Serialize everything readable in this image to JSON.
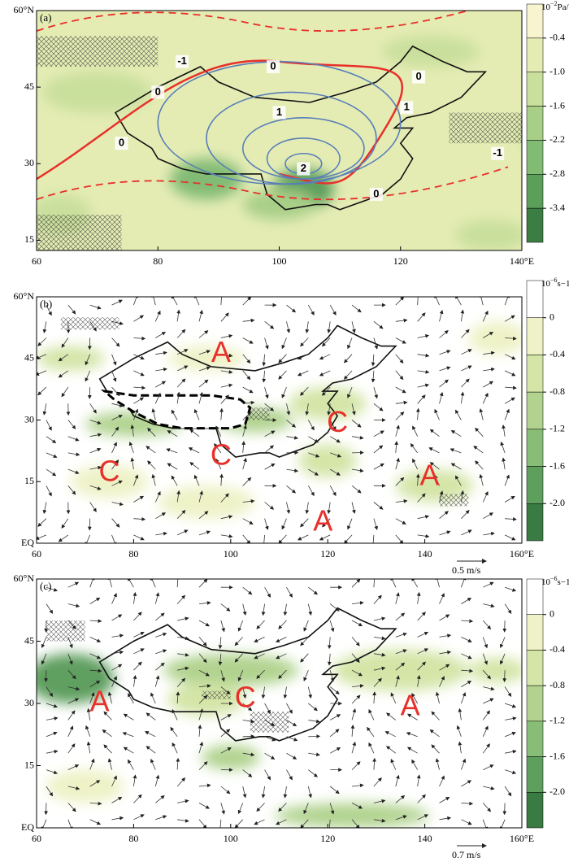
{
  "panels": [
    {
      "label": "(a)",
      "xlim": [
        60,
        140
      ],
      "ylim": [
        13,
        60
      ],
      "xticks": [
        60,
        80,
        100,
        120,
        {
          "value": 140,
          "label": "140°E"
        }
      ],
      "yticks": [
        {
          "value": 60,
          "label": "60°N"
        },
        45,
        30,
        15
      ],
      "colorbar": {
        "unit": {
          "base": "10",
          "exponent": "−2",
          "unit": "Pa/s"
        },
        "ticks": [
          -0.4,
          {
            "value": -1,
            "label": "-1.0"
          },
          -1.6,
          -2.2,
          -2.8,
          -3.4
        ],
        "colors": [
          "#f7f4cf",
          "#e4ecb4",
          "#c9df9c",
          "#a8cf88",
          "#82bb74",
          "#5c9f5b",
          "#3b7d42"
        ]
      },
      "contour_labels": [
        "-1",
        "0",
        "0",
        "0",
        "1",
        "1",
        "-1",
        "0",
        "2",
        "0"
      ]
    },
    {
      "label": "(b)",
      "xlim": [
        60,
        160
      ],
      "ylim": [
        0,
        60
      ],
      "xticks": [
        60,
        80,
        100,
        120,
        140,
        {
          "value": 160,
          "label": "160°E"
        }
      ],
      "yticks": [
        {
          "value": 60,
          "label": "60°N"
        },
        45,
        30,
        15,
        {
          "value": 0,
          "label": "EQ"
        }
      ],
      "colorbar": {
        "unit": {
          "base": "10",
          "exponent": "−6",
          "unit": "s−1"
        },
        "ticks": [
          0,
          -0.4,
          -0.8,
          -1.2,
          -1.6,
          {
            "value": -2,
            "label": "-2.0"
          }
        ],
        "colors": [
          "#ffffff",
          "#eef2c6",
          "#d4e5a7",
          "#b1d38f",
          "#88bd77",
          "#5e9f5e",
          "#3a7b43"
        ]
      },
      "centers": [
        "A",
        "C",
        "C",
        "C",
        "A",
        "A"
      ],
      "reference_vector": "0.5 m/s"
    },
    {
      "label": "(c)",
      "xlim": [
        60,
        160
      ],
      "ylim": [
        0,
        60
      ],
      "xticks": [
        60,
        80,
        100,
        120,
        140,
        {
          "value": 160,
          "label": "160°E"
        }
      ],
      "yticks": [
        {
          "value": 60,
          "label": "60°N"
        },
        45,
        30,
        15,
        {
          "value": 0,
          "label": "EQ"
        }
      ],
      "colorbar": {
        "unit": {
          "base": "10",
          "exponent": "−6",
          "unit": "s−1"
        },
        "ticks": [
          0,
          -0.4,
          -0.8,
          -1.2,
          -1.6,
          {
            "value": -2,
            "label": "-2.0"
          }
        ],
        "colors": [
          "#ffffff",
          "#eef2c6",
          "#d4e5a7",
          "#b1d38f",
          "#88bd77",
          "#5e9f5e",
          "#3a7b43"
        ]
      },
      "centers": [
        "A",
        "C",
        "A"
      ],
      "reference_vector": "0.7 m/s"
    }
  ]
}
